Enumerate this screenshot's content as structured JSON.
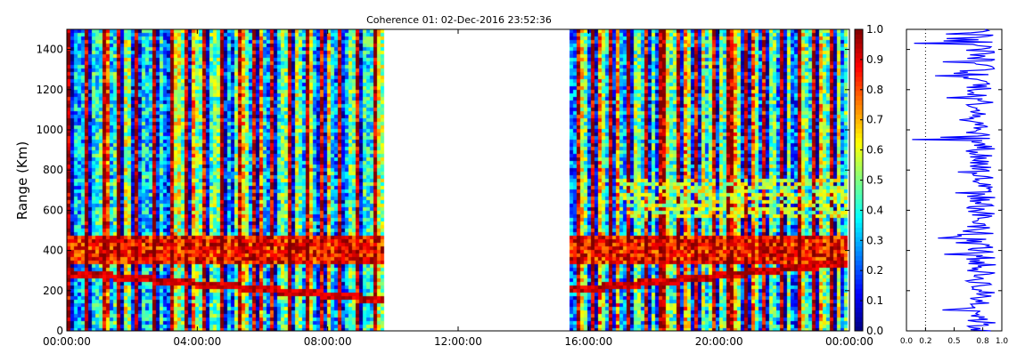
{
  "chart_data": [
    {
      "type": "heatmap",
      "title": "Coherence 01: 02-Dec-2016 23:52:36",
      "ylabel": "Range (Km)",
      "xlabel": "",
      "x_tick_labels": [
        "00:00:00",
        "04:00:00",
        "08:00:00",
        "12:00:00",
        "16:00:00",
        "20:00:00",
        "00:00:00"
      ],
      "x_tick_hours": [
        0,
        4,
        8,
        12,
        16,
        20,
        24
      ],
      "xlim_hours": [
        0,
        24
      ],
      "y_ticks": [
        0,
        200,
        400,
        600,
        800,
        1000,
        1200,
        1400
      ],
      "ylim": [
        0,
        1500
      ],
      "data_gaps_hours": [
        [
          9.7,
          15.4
        ]
      ],
      "data_segments_hours": [
        [
          0,
          9.7
        ],
        [
          15.4,
          24
        ]
      ],
      "colorscale": "jet",
      "colorbar": {
        "ticks": [
          "0.0",
          "0.1",
          "0.2",
          "0.3",
          "0.4",
          "0.5",
          "0.6",
          "0.7",
          "0.8",
          "0.9",
          "1.0"
        ],
        "range": [
          0,
          1
        ]
      }
    },
    {
      "type": "line",
      "x_tick_labels": [
        "0.0",
        "0.2",
        "0.5",
        "0.8",
        "1.0"
      ],
      "x_ticks": [
        0.0,
        0.2,
        0.5,
        0.8,
        1.0
      ],
      "xlim": [
        0,
        1
      ],
      "ylim": [
        0,
        1500
      ],
      "reference_line_x": 0.2,
      "series_color": "#0000ff"
    }
  ]
}
